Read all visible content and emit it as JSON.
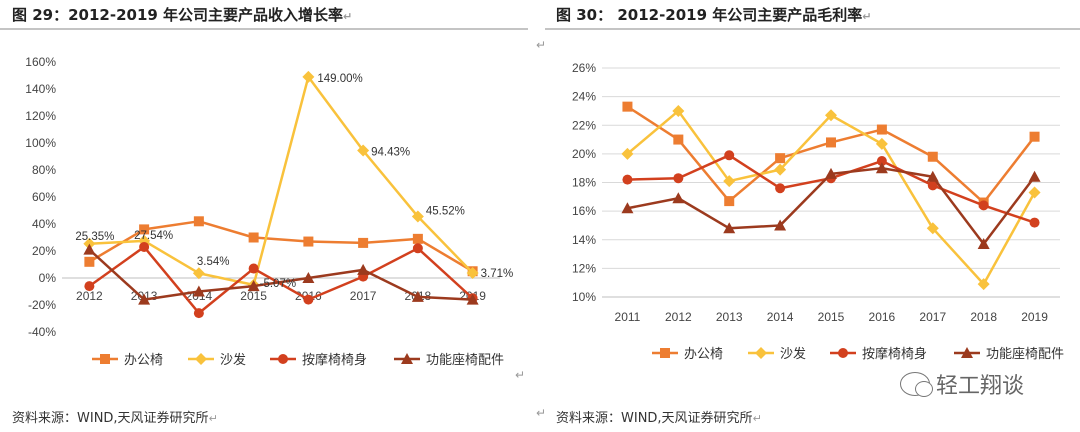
{
  "colors": {
    "office_chair": "#ED7D31",
    "sofa": "#F9C23C",
    "massage_chair": "#D2401E",
    "accessories": "#9C3A1E"
  },
  "left": {
    "title": "图 29：2012-2019 年公司主要产品收入增长率",
    "title_suffix": "↵",
    "source": "资料来源：WIND,天风证券研究所",
    "source_suffix": "↵"
  },
  "right": {
    "title": "图 30：    2012-2019 年公司主要产品毛利率",
    "title_suffix": "↵",
    "source": "资料来源：WIND,天风证券研究所",
    "source_suffix": "↵"
  },
  "stray_marks": [
    "↵",
    "↵",
    "↵"
  ],
  "watermark": {
    "icon": "wechat-icon",
    "text": "轻工翔谈"
  },
  "chart_data": [
    {
      "type": "line",
      "categories": [
        "2012",
        "2013",
        "2014",
        "2015",
        "2016",
        "2017",
        "2018",
        "2019"
      ],
      "ylim": [
        -40,
        160
      ],
      "yticks": [
        -40,
        -20,
        0,
        20,
        40,
        60,
        80,
        100,
        120,
        140,
        160
      ],
      "tick_suffix": "%",
      "legend_position": "bottom",
      "series": [
        {
          "name": "办公椅",
          "marker": "square",
          "color": "#ED7D31",
          "values": [
            12,
            36,
            42,
            30,
            27,
            26,
            29,
            5
          ]
        },
        {
          "name": "沙发",
          "marker": "diamond",
          "color": "#F9C23C",
          "values": [
            25.35,
            27.54,
            3.54,
            -5.07,
            149.0,
            94.43,
            45.52,
            3.71
          ]
        },
        {
          "name": "按摩椅椅身",
          "marker": "circle",
          "color": "#D2401E",
          "values": [
            -6,
            23,
            -26,
            7,
            -16,
            1,
            22,
            -15
          ]
        },
        {
          "name": "功能座椅配件",
          "marker": "triangle",
          "color": "#9C3A1E",
          "values": [
            21,
            -16,
            -10,
            -6,
            0,
            6,
            -14,
            -16
          ]
        }
      ],
      "annotations": [
        {
          "series": 1,
          "index": 0,
          "text": "25.35%"
        },
        {
          "series": 1,
          "index": 1,
          "text": "27.54%"
        },
        {
          "series": 1,
          "index": 2,
          "text": "3.54%"
        },
        {
          "series": 1,
          "index": 3,
          "text": "-5.07%"
        },
        {
          "series": 1,
          "index": 4,
          "text": "149.00%"
        },
        {
          "series": 1,
          "index": 5,
          "text": "94.43%"
        },
        {
          "series": 1,
          "index": 6,
          "text": "45.52%"
        },
        {
          "series": 1,
          "index": 7,
          "text": "3.71%"
        }
      ]
    },
    {
      "type": "line",
      "categories": [
        "2011",
        "2012",
        "2013",
        "2014",
        "2015",
        "2016",
        "2017",
        "2018",
        "2019"
      ],
      "ylim": [
        10,
        26
      ],
      "yticks": [
        10,
        12,
        14,
        16,
        18,
        20,
        22,
        24,
        26
      ],
      "tick_suffix": "%",
      "legend_position": "bottom",
      "series": [
        {
          "name": "办公椅",
          "marker": "square",
          "color": "#ED7D31",
          "values": [
            23.3,
            21.0,
            16.7,
            19.7,
            20.8,
            21.7,
            19.8,
            16.6,
            21.2
          ]
        },
        {
          "name": "沙发",
          "marker": "diamond",
          "color": "#F9C23C",
          "values": [
            20.0,
            23.0,
            18.1,
            18.9,
            22.7,
            20.7,
            14.8,
            10.9,
            17.3
          ]
        },
        {
          "name": "按摩椅椅身",
          "marker": "circle",
          "color": "#D2401E",
          "values": [
            18.2,
            18.3,
            19.9,
            17.6,
            18.3,
            19.5,
            17.8,
            16.4,
            15.2
          ]
        },
        {
          "name": "功能座椅配件",
          "marker": "triangle",
          "color": "#9C3A1E",
          "values": [
            16.2,
            16.9,
            14.8,
            15.0,
            18.6,
            19.0,
            18.4,
            13.7,
            18.4
          ]
        }
      ]
    }
  ]
}
